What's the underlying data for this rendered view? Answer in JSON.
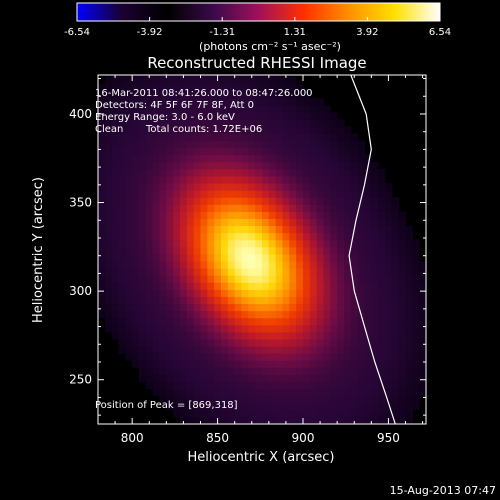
{
  "colorbar": {
    "ticks": [
      "-6.54",
      "-3.92",
      "-1.31",
      "1.31",
      "3.92",
      "6.54"
    ],
    "units": "(photons cm⁻² s⁻¹ asec⁻²)",
    "colors": [
      "#0000ff",
      "#1a0030",
      "#000000",
      "#3a0a4a",
      "#a0105a",
      "#ff3000",
      "#ff9000",
      "#ffe000",
      "#ffffff"
    ]
  },
  "footer": {
    "datestamp": "15-Aug-2013 07:47"
  },
  "chart_data": {
    "type": "heatmap",
    "title": "Reconstructed RHESSI Image",
    "xlabel": "Heliocentric X (arcsec)",
    "ylabel": "Heliocentric Y (arcsec)",
    "xlim": [
      780,
      972
    ],
    "ylim": [
      225,
      422
    ],
    "x_ticks": [
      800,
      850,
      900,
      950
    ],
    "y_ticks": [
      250,
      300,
      350,
      400
    ],
    "annotations": {
      "time_range": "16-Mar-2011 08:41:26.000 to 08:47:26.000",
      "detectors": "Detectors: 4F 5F 6F 7F 8F, Att 0",
      "energy": "Energy Range: 3.0 - 6.0 keV",
      "algorithm": "Clean",
      "counts": "Total counts: 1.72E+06",
      "peak": "Position of Peak = [869,318]"
    },
    "peak": [
      869,
      318
    ],
    "source": {
      "center": [
        869,
        318
      ],
      "sigma_major": 38,
      "sigma_minor": 26,
      "angle_deg": -35
    },
    "limb_curve": [
      [
        928,
        422
      ],
      [
        937,
        400
      ],
      [
        940,
        380
      ],
      [
        936,
        360
      ],
      [
        931,
        340
      ],
      [
        927,
        320
      ],
      [
        930,
        300
      ],
      [
        936,
        280
      ],
      [
        942,
        260
      ],
      [
        949,
        240
      ],
      [
        954,
        225
      ]
    ]
  }
}
